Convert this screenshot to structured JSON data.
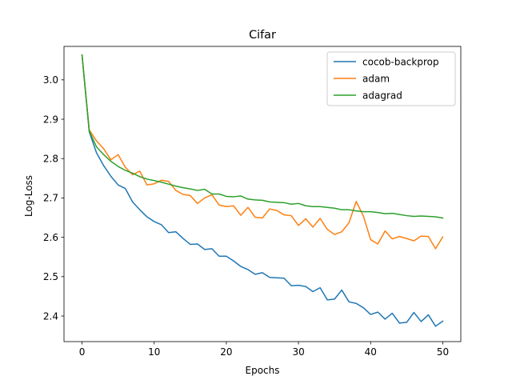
{
  "chart_data": {
    "type": "line",
    "title": "Cifar",
    "xlabel": "Epochs",
    "ylabel": "Log-Loss",
    "xlim": [
      -2.5,
      52.5
    ],
    "ylim": [
      2.335,
      3.085
    ],
    "xticks": [
      "0",
      "10",
      "20",
      "30",
      "40",
      "50"
    ],
    "xtick_values": [
      0,
      10,
      20,
      30,
      40,
      50
    ],
    "yticks": [
      "2.4",
      "2.5",
      "2.6",
      "2.7",
      "2.8",
      "2.9",
      "3.0"
    ],
    "ytick_values": [
      2.4,
      2.5,
      2.6,
      2.7,
      2.8,
      2.9,
      3.0
    ],
    "grid": false,
    "legend_position": "top-right",
    "x": [
      0,
      1,
      2,
      3,
      4,
      5,
      6,
      7,
      8,
      9,
      10,
      11,
      12,
      13,
      14,
      15,
      16,
      17,
      18,
      19,
      20,
      21,
      22,
      23,
      24,
      25,
      26,
      27,
      28,
      29,
      30,
      31,
      32,
      33,
      34,
      35,
      36,
      37,
      38,
      39,
      40,
      41,
      42,
      43,
      44,
      45,
      46,
      47,
      48,
      49,
      50
    ],
    "series": [
      {
        "name": "cocob-backprop",
        "color": "#1f77b4",
        "values": [
          3.063,
          2.868,
          2.815,
          2.782,
          2.755,
          2.733,
          2.724,
          2.69,
          2.67,
          2.652,
          2.64,
          2.632,
          2.612,
          2.614,
          2.597,
          2.582,
          2.583,
          2.569,
          2.571,
          2.552,
          2.552,
          2.54,
          2.526,
          2.518,
          2.506,
          2.51,
          2.498,
          2.497,
          2.496,
          2.477,
          2.478,
          2.475,
          2.462,
          2.472,
          2.441,
          2.443,
          2.466,
          2.436,
          2.432,
          2.421,
          2.404,
          2.41,
          2.392,
          2.407,
          2.382,
          2.384,
          2.409,
          2.386,
          2.403,
          2.374,
          2.387
        ]
      },
      {
        "name": "adam",
        "color": "#ff7f0e",
        "values": [
          3.063,
          2.873,
          2.845,
          2.825,
          2.797,
          2.81,
          2.778,
          2.759,
          2.768,
          2.733,
          2.736,
          2.745,
          2.742,
          2.719,
          2.709,
          2.706,
          2.686,
          2.7,
          2.708,
          2.682,
          2.678,
          2.68,
          2.656,
          2.676,
          2.651,
          2.649,
          2.672,
          2.668,
          2.657,
          2.655,
          2.63,
          2.647,
          2.626,
          2.648,
          2.62,
          2.607,
          2.614,
          2.637,
          2.691,
          2.654,
          2.594,
          2.583,
          2.616,
          2.596,
          2.602,
          2.597,
          2.591,
          2.603,
          2.602,
          2.571,
          2.601
        ]
      },
      {
        "name": "adagrad",
        "color": "#2ca02c",
        "values": [
          3.063,
          2.87,
          2.83,
          2.81,
          2.793,
          2.78,
          2.77,
          2.763,
          2.754,
          2.748,
          2.744,
          2.74,
          2.735,
          2.73,
          2.726,
          2.723,
          2.719,
          2.722,
          2.71,
          2.71,
          2.704,
          2.703,
          2.705,
          2.697,
          2.695,
          2.694,
          2.69,
          2.689,
          2.688,
          2.684,
          2.686,
          2.68,
          2.678,
          2.678,
          2.676,
          2.674,
          2.67,
          2.67,
          2.667,
          2.665,
          2.665,
          2.663,
          2.66,
          2.661,
          2.658,
          2.655,
          2.653,
          2.654,
          2.653,
          2.652,
          2.649
        ]
      }
    ]
  }
}
